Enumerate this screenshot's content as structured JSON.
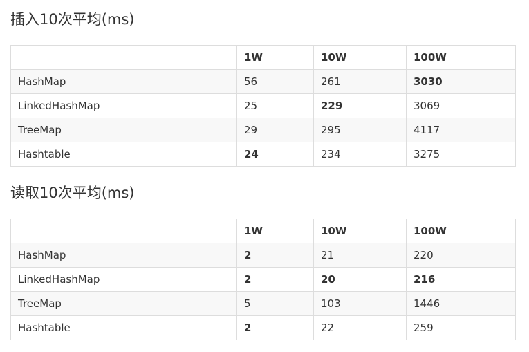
{
  "sections": [
    {
      "title": "插入10次平均(ms)",
      "columns": [
        "",
        "1W",
        "10W",
        "100W"
      ],
      "rows": [
        {
          "name": "HashMap",
          "values": [
            "56",
            "261",
            "3030"
          ],
          "bold": [
            false,
            false,
            true
          ]
        },
        {
          "name": "LinkedHashMap",
          "values": [
            "25",
            "229",
            "3069"
          ],
          "bold": [
            false,
            true,
            false
          ]
        },
        {
          "name": "TreeMap",
          "values": [
            "29",
            "295",
            "4117"
          ],
          "bold": [
            false,
            false,
            false
          ]
        },
        {
          "name": "Hashtable",
          "values": [
            "24",
            "234",
            "3275"
          ],
          "bold": [
            true,
            false,
            false
          ]
        }
      ]
    },
    {
      "title": "读取10次平均(ms)",
      "columns": [
        "",
        "1W",
        "10W",
        "100W"
      ],
      "rows": [
        {
          "name": "HashMap",
          "values": [
            "2",
            "21",
            "220"
          ],
          "bold": [
            true,
            false,
            false
          ]
        },
        {
          "name": "LinkedHashMap",
          "values": [
            "2",
            "20",
            "216"
          ],
          "bold": [
            true,
            true,
            true
          ]
        },
        {
          "name": "TreeMap",
          "values": [
            "5",
            "103",
            "1446"
          ],
          "bold": [
            false,
            false,
            false
          ]
        },
        {
          "name": "Hashtable",
          "values": [
            "2",
            "22",
            "259"
          ],
          "bold": [
            true,
            false,
            false
          ]
        }
      ]
    }
  ],
  "colors": {
    "text": "#333333",
    "border": "#dddddd",
    "stripe": "#f8f8f8"
  }
}
